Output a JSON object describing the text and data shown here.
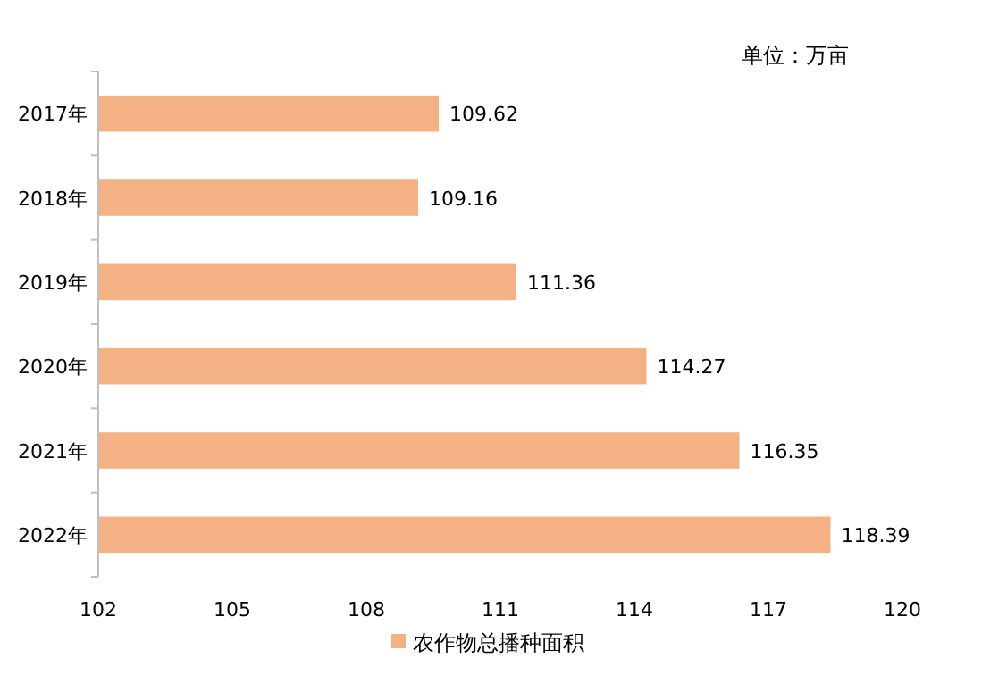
{
  "chart_data": {
    "type": "bar",
    "orientation": "horizontal",
    "categories": [
      "2017年",
      "2018年",
      "2019年",
      "2020年",
      "2021年",
      "2022年"
    ],
    "series": [
      {
        "name": "农作物总播种面积",
        "color": "#f4b183",
        "values": [
          109.62,
          109.16,
          111.36,
          114.27,
          116.35,
          118.39
        ]
      }
    ],
    "xlim": [
      102,
      120
    ],
    "xticks": [
      102,
      105,
      108,
      111,
      114,
      117,
      120
    ],
    "data_labels": true,
    "legend": "bottom",
    "grid": false,
    "annotations": [
      "单位：万亩"
    ]
  }
}
